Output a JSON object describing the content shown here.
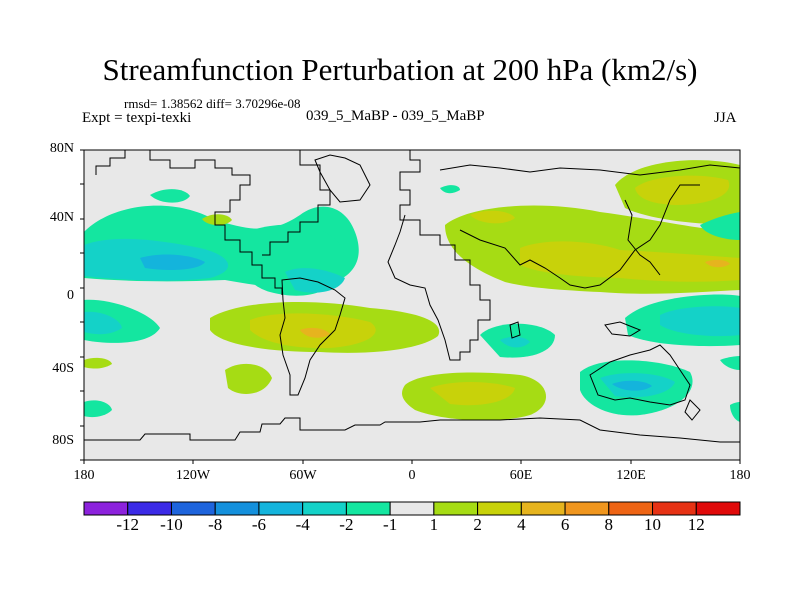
{
  "title": "Streamfunction Perturbation at 200 hPa (km2/s)",
  "stats": "rmsd= 1.38562 diff= 3.70296e-08",
  "expt": "Expt = texpi-texki",
  "subtitle": "039_5_MaBP - 039_5_MaBP",
  "season": "JJA",
  "lat_ticks": [
    "80N",
    "40N",
    "0",
    "40S",
    "80S"
  ],
  "lon_ticks": [
    "180",
    "120W",
    "60W",
    "0",
    "60E",
    "120E",
    "180"
  ],
  "chart_data": {
    "type": "heatmap",
    "projection": "cylindrical-equidistant",
    "lon_range": [
      -180,
      180
    ],
    "lat_range": [
      -90,
      90
    ],
    "lat_tick_values": [
      80,
      40,
      0,
      -40,
      -80
    ],
    "lon_tick_values": [
      -180,
      -120,
      -60,
      0,
      60,
      120,
      180
    ],
    "colorbar": {
      "labels": [
        "-12",
        "-10",
        "-8",
        "-6",
        "-4",
        "-2",
        "-1",
        "1",
        "2",
        "4",
        "6",
        "8",
        "10",
        "12"
      ],
      "levels": [
        -12,
        -10,
        -8,
        -6,
        -4,
        -2,
        -1,
        1,
        2,
        4,
        6,
        8,
        10,
        12
      ],
      "colors": [
        "#8c22dc",
        "#3b2ae6",
        "#1e64dc",
        "#1490dc",
        "#14b4dc",
        "#14d2c8",
        "#14e6a0",
        "#e8e8e8",
        "#a6dc14",
        "#c8d20a",
        "#e6b41e",
        "#f0961e",
        "#ee6414",
        "#e63214",
        "#e00a0a"
      ]
    },
    "anomalies": [
      {
        "name": "N-Pacific negative",
        "lon": -165,
        "lat": 20,
        "level": -6
      },
      {
        "name": "Tropical E-Pacific negative",
        "lon": -165,
        "lat": -15,
        "level": -4
      },
      {
        "name": "N-Atlantic negative",
        "lon": -58,
        "lat": 30,
        "level": -4
      },
      {
        "name": "South America positive",
        "lon": -60,
        "lat": -18,
        "level": 4
      },
      {
        "name": "Southern Africa positive",
        "lon": 20,
        "lat": -50,
        "level": 2
      },
      {
        "name": "Madagascar negative",
        "lon": 55,
        "lat": -22,
        "level": -4
      },
      {
        "name": "Eurasia positive",
        "lon": 70,
        "lat": 25,
        "level": 4
      },
      {
        "name": "East Asia positive",
        "lon": 150,
        "lat": 15,
        "level": 4
      },
      {
        "name": "NE Asia positive",
        "lon": 150,
        "lat": 55,
        "level": 4
      },
      {
        "name": "Australia negative",
        "lon": 130,
        "lat": -48,
        "level": -6
      },
      {
        "name": "W-Pacific negative",
        "lon": 160,
        "lat": -12,
        "level": -4
      }
    ]
  }
}
